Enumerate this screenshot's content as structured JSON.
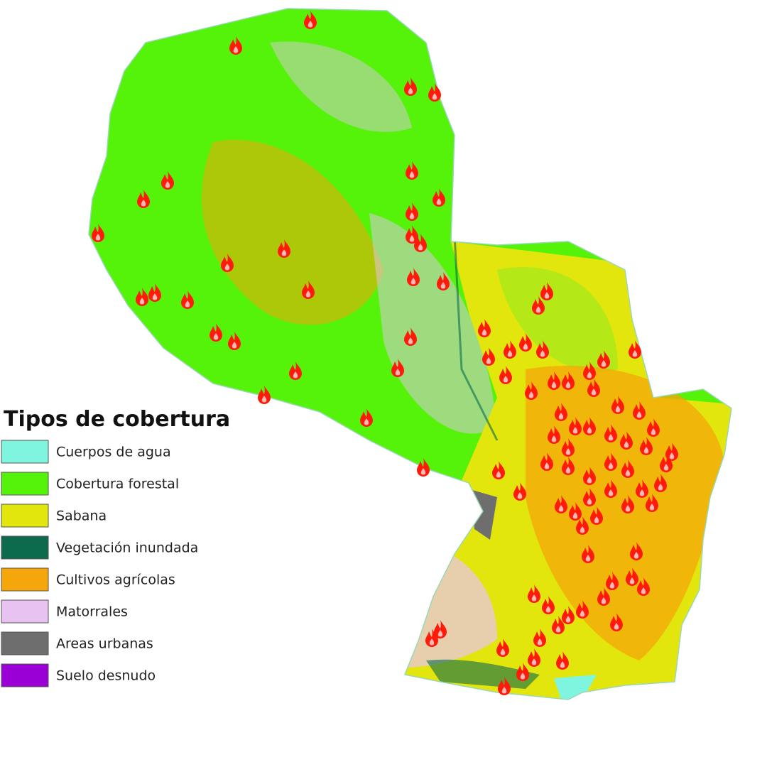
{
  "legend": {
    "title": "Tipos de cobertura",
    "items": [
      {
        "label": "Cuerpos de agua",
        "color": "#7ff5e0"
      },
      {
        "label": "Cobertura forestal",
        "color": "#55f20a"
      },
      {
        "label": "Sabana",
        "color": "#e3e60c"
      },
      {
        "label": "Vegetación inundada",
        "color": "#0c6b4c"
      },
      {
        "label": "Cultivos agrícolas",
        "color": "#f5a60a"
      },
      {
        "label": "Matorrales",
        "color": "#e8c3f2"
      },
      {
        "label": "Areas urbanas",
        "color": "#6e6e6e"
      },
      {
        "label": "Suelo desnudo",
        "color": "#9a00d6"
      }
    ]
  }
}
